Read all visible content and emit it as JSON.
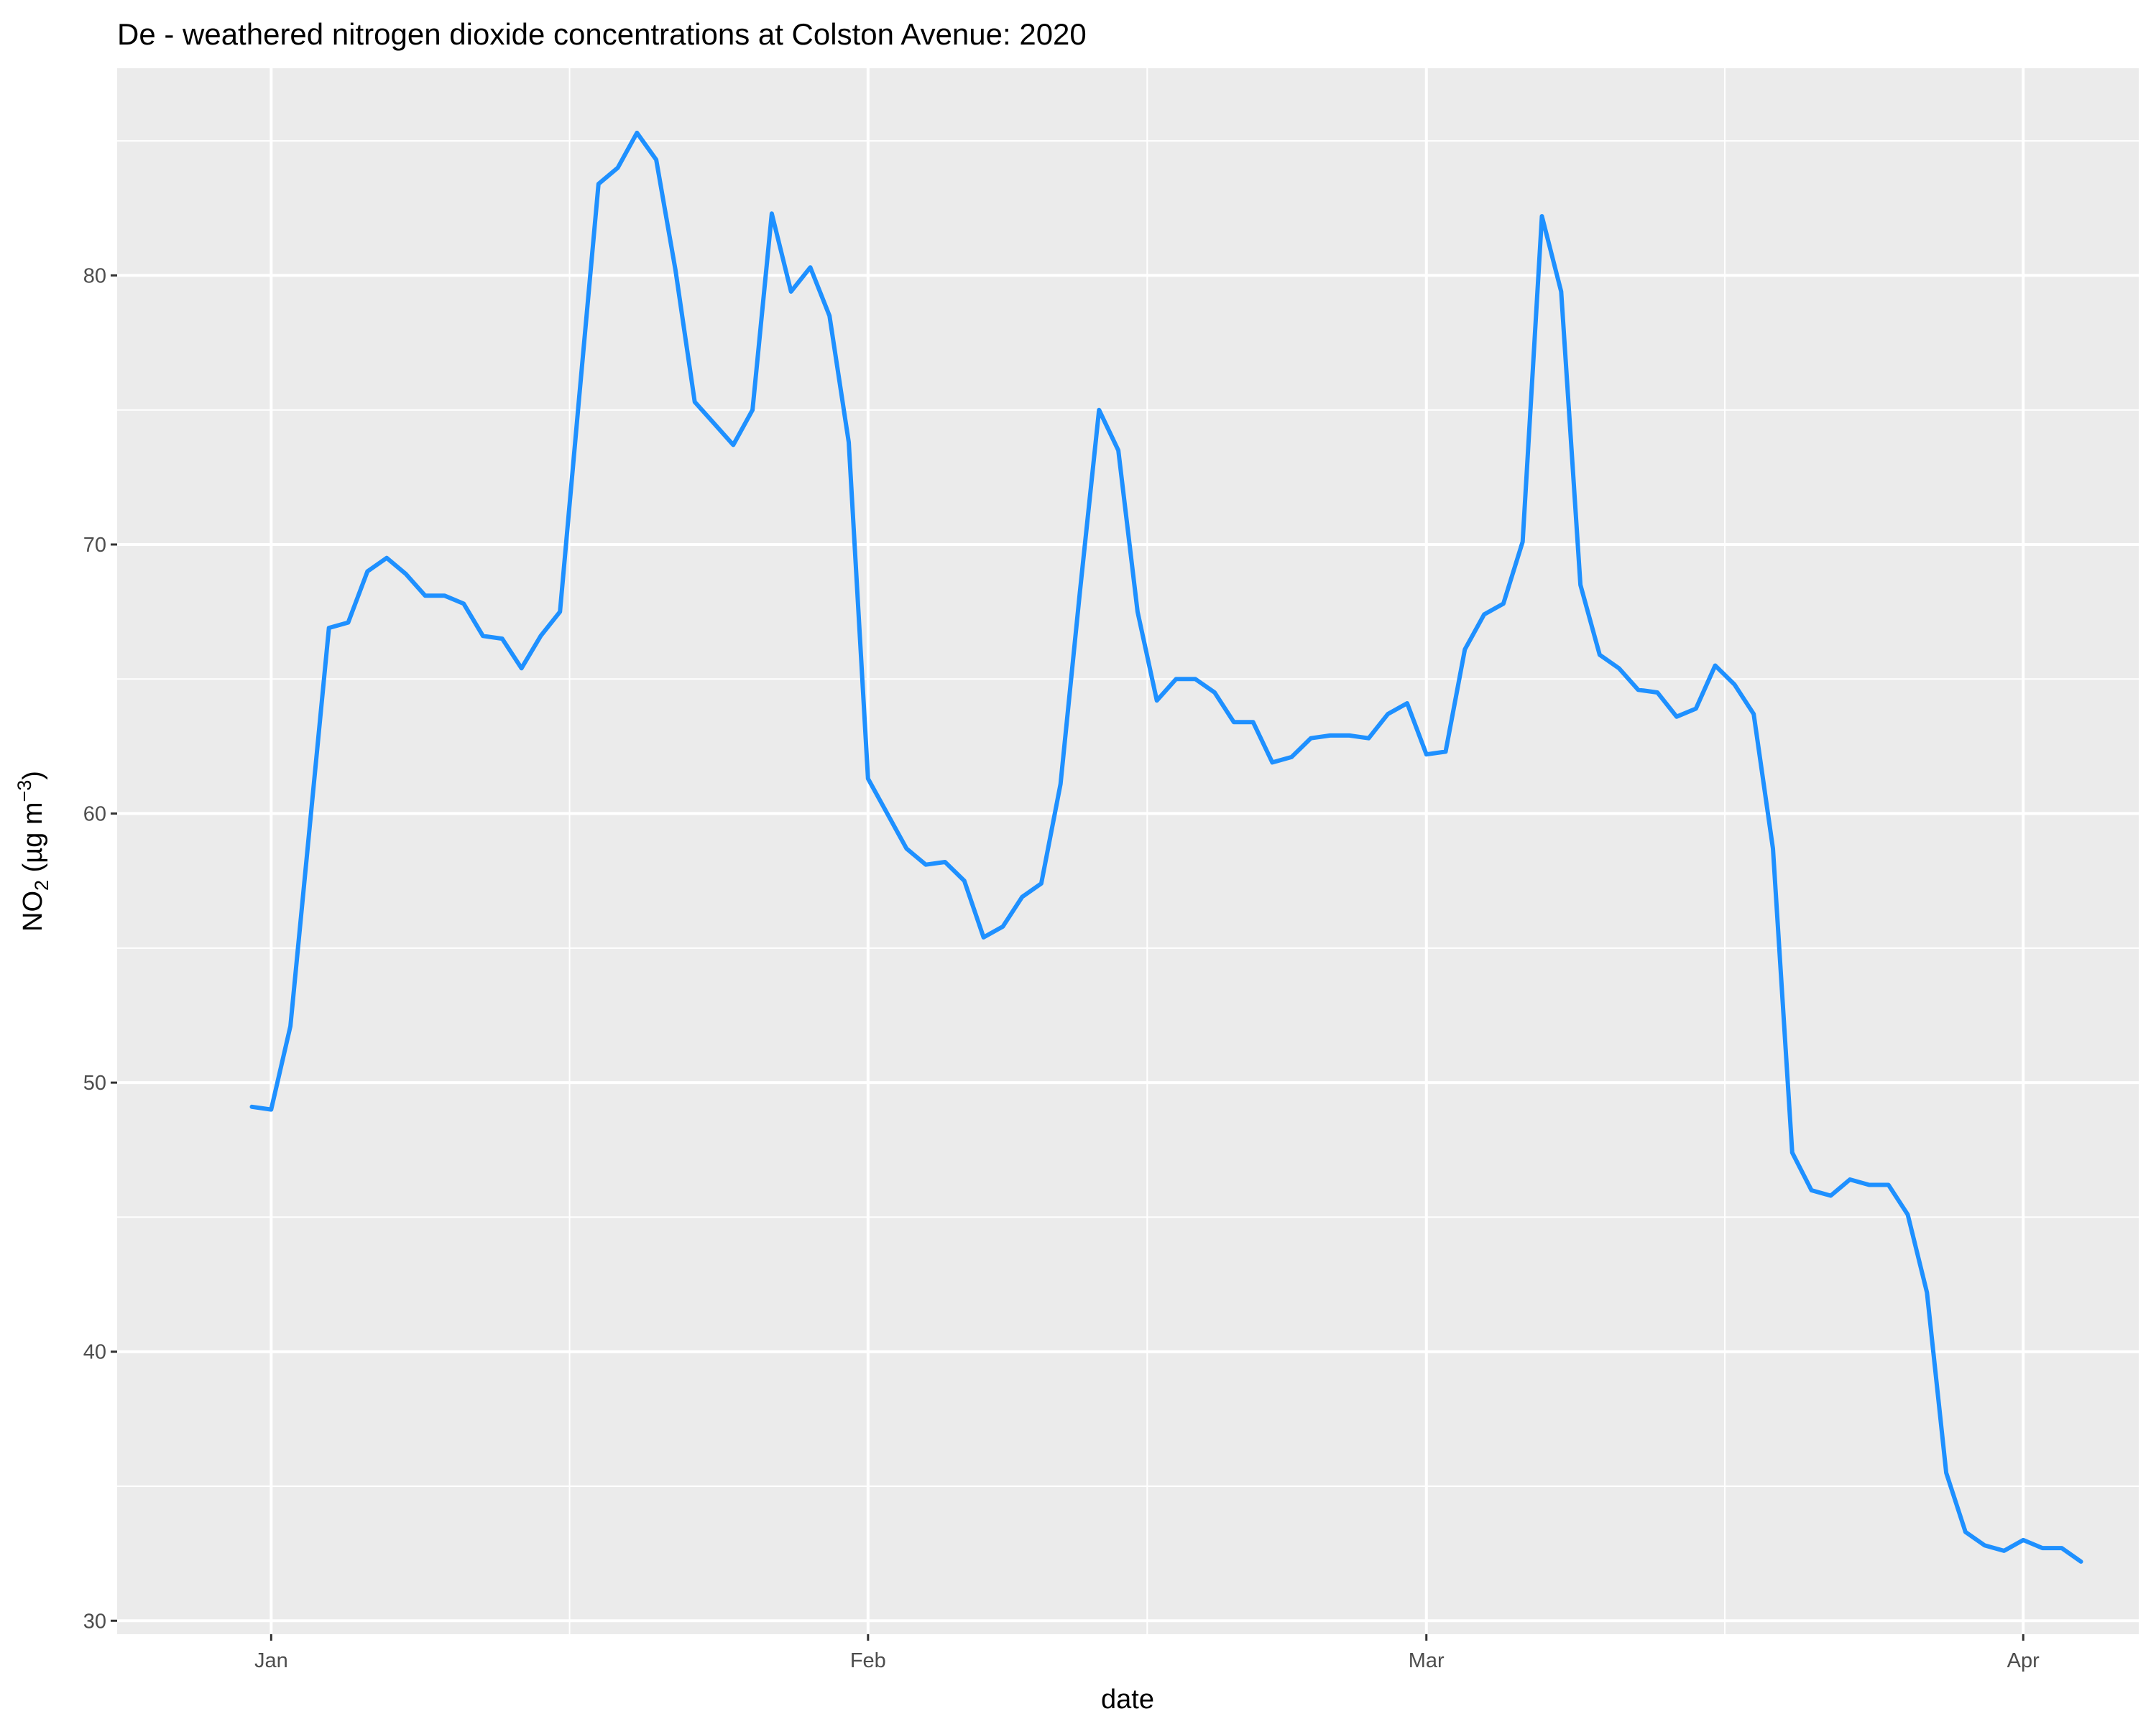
{
  "chart_data": {
    "type": "line",
    "title": "De - weathered nitrogen dioxide concentrations at Colston Avenue: 2020",
    "xlabel": "date",
    "ylabel": {
      "base": "NO",
      "sub": "2",
      "mid": " (µg m",
      "sup": "−3",
      "end": ")"
    },
    "x_axis": {
      "type": "date",
      "range": [
        "2019-12-24",
        "2020-04-07"
      ],
      "ticks": [
        {
          "date": "2020-01-01",
          "label": "Jan"
        },
        {
          "date": "2020-02-01",
          "label": "Feb"
        },
        {
          "date": "2020-03-01",
          "label": "Mar"
        },
        {
          "date": "2020-04-01",
          "label": "Apr"
        }
      ]
    },
    "y_axis": {
      "range": [
        29.5,
        87.7
      ],
      "ticks": [
        30,
        40,
        50,
        60,
        70,
        80
      ],
      "minor": [
        35,
        45,
        55,
        65,
        75,
        85
      ]
    },
    "grid": true,
    "legend": "none",
    "series_color": "#1e90ff",
    "panel_color": "#ebebeb",
    "series": [
      {
        "x_start": "2019-12-31",
        "x_end": "2020-04-03",
        "step": "1 day",
        "values": [
          49.1,
          49.0,
          52.1,
          59.5,
          66.9,
          67.1,
          69.0,
          69.5,
          68.9,
          68.1,
          68.1,
          67.8,
          66.6,
          66.5,
          65.4,
          66.6,
          67.5,
          75.5,
          83.4,
          84.0,
          85.3,
          84.3,
          80.2,
          75.3,
          74.5,
          73.7,
          75.0,
          82.3,
          79.4,
          80.3,
          78.5,
          73.8,
          61.3,
          60.0,
          58.7,
          58.1,
          58.2,
          57.5,
          55.4,
          55.8,
          56.9,
          57.4,
          61.1,
          68.2,
          75.0,
          73.5,
          67.5,
          64.2,
          65.0,
          65.0,
          64.5,
          63.4,
          63.4,
          61.9,
          62.1,
          62.8,
          62.9,
          62.9,
          62.8,
          63.7,
          64.1,
          62.2,
          62.3,
          66.1,
          67.4,
          67.8,
          70.1,
          82.2,
          79.4,
          68.5,
          65.9,
          65.4,
          64.6,
          64.5,
          63.6,
          63.9,
          65.5,
          64.8,
          63.7,
          58.7,
          47.4,
          46.0,
          45.8,
          46.4,
          46.2,
          46.2,
          45.1,
          42.2,
          35.5,
          33.3,
          32.8,
          32.6,
          33.0,
          32.7,
          32.7,
          32.2
        ]
      }
    ]
  }
}
